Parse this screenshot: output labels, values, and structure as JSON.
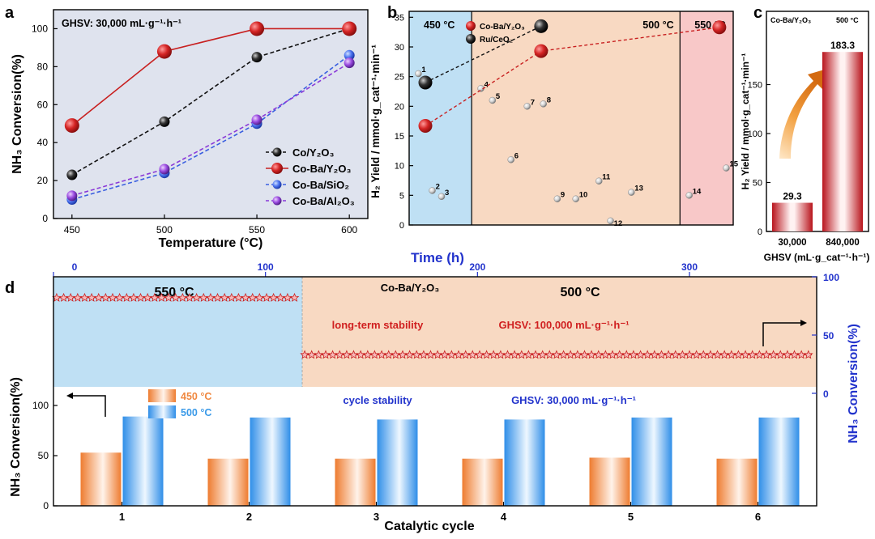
{
  "colors": {
    "red": "#c82020",
    "black": "#111111",
    "blue": "#3a5fe0",
    "purple": "#8a3ad8",
    "panel_a_bg": "#dfe3ee",
    "blue_zone": "#bfe0f4",
    "orange_zone": "#f8d9c2",
    "pink_zone": "#f8c8c8",
    "orange_bar": "#f08840",
    "blue_bar": "#3a9ae8",
    "dark_blue_axis": "#2233cc"
  },
  "panel_labels": {
    "a": "a",
    "b": "b",
    "c": "c",
    "d": "d"
  },
  "chart_data": [
    {
      "panel": "a",
      "type": "line",
      "annotation": "GHSV: 30,000 mL·g⁻¹·h⁻¹",
      "xlabel": "Temperature (°C)",
      "ylabel": "NH₃ Conversion(%)",
      "x": [
        450,
        500,
        550,
        600
      ],
      "xlim": [
        440,
        610
      ],
      "ylim": [
        0,
        110
      ],
      "yticks": [
        0,
        20,
        40,
        60,
        80,
        100
      ],
      "xticks": [
        450,
        500,
        550,
        600
      ],
      "legend_position": "lower-right",
      "series": [
        {
          "name": "Co/Y₂O₃",
          "color": "#111111",
          "style": "dashed",
          "values": [
            23,
            51,
            85,
            100
          ]
        },
        {
          "name": "Co-Ba/Y₂O₃",
          "color": "#c82020",
          "style": "solid",
          "values": [
            49,
            88,
            100,
            100
          ]
        },
        {
          "name": "Co-Ba/SiO₂",
          "color": "#3a5fe0",
          "style": "dashed",
          "values": [
            10,
            24,
            50,
            86
          ]
        },
        {
          "name": "Co-Ba/Al₂O₃",
          "color": "#8a3ad8",
          "style": "dashed",
          "values": [
            12,
            26,
            52,
            82
          ]
        }
      ]
    },
    {
      "panel": "b",
      "type": "scatter",
      "ylabel": "H₂ Yield / mmol·g_cat⁻¹·min⁻¹",
      "xlabel": "Time (h)",
      "xlim": [
        0,
        340
      ],
      "ylim": [
        0,
        36
      ],
      "yticks": [
        0,
        5,
        10,
        15,
        20,
        25,
        30,
        35
      ],
      "xticks": [
        0,
        100,
        200,
        300
      ],
      "zones": [
        {
          "label": "450 °C",
          "from": 0,
          "to": 27,
          "color": "#bfe0f4"
        },
        {
          "label": "500 °C",
          "from": 27,
          "to": 117,
          "color": "#f8d9c2"
        },
        {
          "label": "550 °C",
          "from": 117,
          "to": 140,
          "color": "#f8c8c8"
        }
      ],
      "zone_labels": [
        "450 °C",
        "500 °C",
        "550 °C"
      ],
      "legend_position": "top-left",
      "series": [
        {
          "name": "Co-Ba/Y₂O₃",
          "color": "#c82020",
          "x": [
            7,
            57,
            134
          ],
          "values": [
            16.7,
            29.3,
            33.3
          ]
        },
        {
          "name": "Ru/CeO₂",
          "color": "#111111",
          "x": [
            7,
            57
          ],
          "values": [
            24,
            33.5
          ]
        }
      ],
      "reference_points": [
        {
          "label": "1",
          "x": 4,
          "y": 25.5
        },
        {
          "label": "2",
          "x": 10,
          "y": 5.8
        },
        {
          "label": "3",
          "x": 14,
          "y": 4.8
        },
        {
          "label": "4",
          "x": 31,
          "y": 23
        },
        {
          "label": "5",
          "x": 36,
          "y": 21
        },
        {
          "label": "6",
          "x": 44,
          "y": 11
        },
        {
          "label": "7",
          "x": 51,
          "y": 20
        },
        {
          "label": "8",
          "x": 58,
          "y": 20.4
        },
        {
          "label": "9",
          "x": 64,
          "y": 4.4
        },
        {
          "label": "10",
          "x": 72,
          "y": 4.4
        },
        {
          "label": "11",
          "x": 82,
          "y": 7.4
        },
        {
          "label": "12",
          "x": 87,
          "y": 0.7
        },
        {
          "label": "13",
          "x": 96,
          "y": 5.5
        },
        {
          "label": "14",
          "x": 121,
          "y": 5
        },
        {
          "label": "15",
          "x": 137,
          "y": 9.6
        }
      ]
    },
    {
      "panel": "c",
      "type": "bar",
      "title_left": "Co-Ba/Y₂O₃",
      "title_right": "500 °C",
      "categories": [
        "30,000",
        "840,000"
      ],
      "values": [
        29.3,
        183.3
      ],
      "data_labels": [
        "29.3",
        "183.3"
      ],
      "xlabel": "GHSV (mL·g_cat⁻¹·h⁻¹)",
      "ylabel": "H₂ Yield / mmol·g_cat⁻¹·min⁻¹",
      "ylim": [
        0,
        200
      ],
      "yticks": [
        0,
        50,
        100,
        150
      ],
      "color": "#c82020"
    },
    {
      "panel": "d",
      "type": "line",
      "top_xlabel": "Time (h)",
      "top_xticks": [
        0,
        100,
        200,
        300
      ],
      "top_xlim": [
        0,
        360
      ],
      "right_ylabel": "NH₃ Conversion(%)",
      "right_yticks": [
        0,
        50,
        100
      ],
      "zone_labels": [
        "550 °C",
        "Co-Ba/Y₂O₃",
        "500 °C"
      ],
      "annotations": [
        "long-term stability",
        "GHSV: 100,000 mL·g⁻¹·h⁻¹"
      ],
      "long_term": [
        {
          "from": 0,
          "to": 117,
          "value": 82,
          "color": "#c82020"
        },
        {
          "from": 117,
          "to": 360,
          "value": 33,
          "color": "#c82020"
        }
      ]
    },
    {
      "panel": "d",
      "type": "bar",
      "annotations": [
        "cycle stability",
        "GHSV: 30,000 mL·g⁻¹·h⁻¹"
      ],
      "xlabel": "Catalytic cycle",
      "ylabel": "NH₃ Conversion(%)",
      "categories": [
        "1",
        "2",
        "3",
        "4",
        "5",
        "6"
      ],
      "yticks": [
        0,
        50,
        100
      ],
      "ylim": [
        0,
        125
      ],
      "series": [
        {
          "name": "450 °C",
          "color": "#f08840",
          "values": [
            53,
            47,
            47,
            47,
            48,
            47
          ]
        },
        {
          "name": "500 °C",
          "color": "#3a9ae8",
          "values": [
            89,
            88,
            86,
            86,
            88,
            88
          ]
        }
      ]
    }
  ]
}
